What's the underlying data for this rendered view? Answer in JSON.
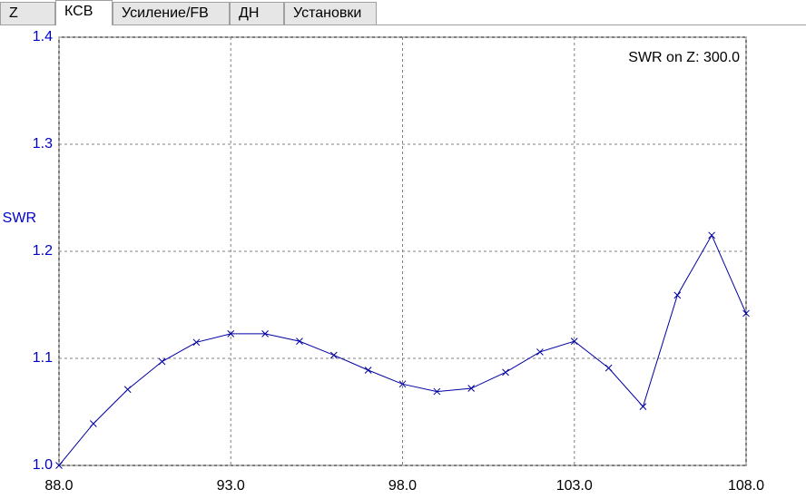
{
  "tabs": [
    "Z",
    "КСВ",
    "Усиление/FB",
    "ДН",
    "Установки"
  ],
  "chart_data": {
    "type": "line",
    "y_label": "SWR",
    "annotation": "SWR on Z: 300.0",
    "x": [
      88,
      89,
      90,
      91,
      92,
      93,
      94,
      95,
      96,
      97,
      98,
      99,
      100,
      101,
      102,
      103,
      104,
      105,
      106,
      107,
      108
    ],
    "series": [
      {
        "color": "#0000a0",
        "values": [
          1.0,
          1.039,
          1.071,
          1.097,
          1.115,
          1.123,
          1.123,
          1.116,
          1.103,
          1.089,
          1.076,
          1.069,
          1.072,
          1.087,
          1.106,
          1.116,
          1.091,
          1.055,
          1.159,
          1.215,
          1.142
        ]
      }
    ],
    "xlim": [
      88,
      108
    ],
    "xticks": [
      {
        "value": 88,
        "label": "88.0"
      },
      {
        "value": 93,
        "label": "93.0"
      },
      {
        "value": 98,
        "label": "98.0"
      },
      {
        "value": 103,
        "label": "103.0"
      },
      {
        "value": 108,
        "label": "108.0"
      }
    ],
    "ylim": [
      1.0,
      1.4
    ],
    "yticks": [
      {
        "value": 1.0,
        "label": "1.0"
      },
      {
        "value": 1.1,
        "label": "1.1"
      },
      {
        "value": 1.2,
        "label": "1.2"
      },
      {
        "value": 1.3,
        "label": "1.3"
      },
      {
        "value": 1.4,
        "label": "1.4"
      }
    ],
    "grid": true
  }
}
